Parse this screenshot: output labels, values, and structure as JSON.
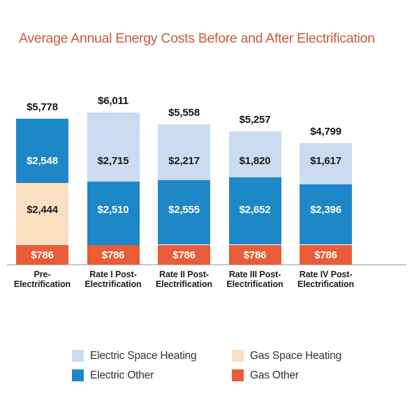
{
  "chart_data": {
    "type": "bar",
    "stacked": true,
    "title": "Average Annual Energy Costs Before and After Electrification",
    "title_color": "#c7593e",
    "axis_color": "#c9cacb",
    "grid": false,
    "categories": [
      "Pre-Electrification",
      "Rate I Post-Electrification",
      "Rate II Post-Electrification",
      "Rate III Post-Electrification",
      "Rate IV Post-Electrification"
    ],
    "series": [
      {
        "name": "Gas Other",
        "fill": "#e85d37",
        "label_text_color": "#ffffff",
        "values": [
          786,
          786,
          786,
          786,
          786
        ]
      },
      {
        "name": "Gas Space Heating",
        "fill": "#fbdfc1",
        "label_text_color": "#1c1c1e",
        "values": [
          2444,
          0,
          0,
          0,
          0
        ]
      },
      {
        "name": "Electric Other",
        "fill": "#1e87c8",
        "label_text_color": "#ffffff",
        "values": [
          2548,
          2510,
          2555,
          2652,
          2396
        ]
      },
      {
        "name": "Electric Space Heating",
        "fill": "#cbdcf0",
        "label_text_color": "#1c1c1e",
        "values": [
          0,
          2715,
          2217,
          1820,
          1617
        ]
      }
    ],
    "bars": [
      {
        "category_lines": [
          "Pre-",
          "Electrification"
        ],
        "total_label": "$5,778",
        "segments": [
          {
            "series": "Gas Other",
            "value": 786,
            "label": "$786"
          },
          {
            "series": "Gas Space Heating",
            "value": 2444,
            "label": "$2,444"
          },
          {
            "series": "Electric Other",
            "value": 2548,
            "label": "$2,548"
          }
        ]
      },
      {
        "category_lines": [
          "Rate I Post-",
          "Electrification"
        ],
        "total_label": "$6,011",
        "segments": [
          {
            "series": "Gas Other",
            "value": 786,
            "label": "$786"
          },
          {
            "series": "Electric Other",
            "value": 2510,
            "label": "$2,510"
          },
          {
            "series": "Electric Space Heating",
            "value": 2715,
            "label": "$2,715"
          }
        ]
      },
      {
        "category_lines": [
          "Rate II Post-",
          "Electrification"
        ],
        "total_label": "$5,558",
        "segments": [
          {
            "series": "Gas Other",
            "value": 786,
            "label": "$786"
          },
          {
            "series": "Electric Other",
            "value": 2555,
            "label": "$2,555"
          },
          {
            "series": "Electric Space Heating",
            "value": 2217,
            "label": "$2,217"
          }
        ]
      },
      {
        "category_lines": [
          "Rate III Post-",
          "Electrification"
        ],
        "total_label": "$5,257",
        "segments": [
          {
            "series": "Gas Other",
            "value": 786,
            "label": "$786"
          },
          {
            "series": "Electric Other",
            "value": 2652,
            "label": "$2,652"
          },
          {
            "series": "Electric Space Heating",
            "value": 1820,
            "label": "$1,820"
          }
        ]
      },
      {
        "category_lines": [
          "Rate IV Post-",
          "Electrification"
        ],
        "total_label": "$4,799",
        "segments": [
          {
            "series": "Gas Other",
            "value": 786,
            "label": "$786"
          },
          {
            "series": "Electric Other",
            "value": 2396,
            "label": "$2,396"
          },
          {
            "series": "Electric Space Heating",
            "value": 1617,
            "label": "$1,617"
          }
        ]
      }
    ],
    "legend": {
      "columns": [
        [
          {
            "label": "Electric Space Heating"
          },
          {
            "label": "Electric Other"
          }
        ],
        [
          {
            "label": "Gas Space Heating"
          },
          {
            "label": "Gas Other"
          }
        ]
      ]
    }
  }
}
